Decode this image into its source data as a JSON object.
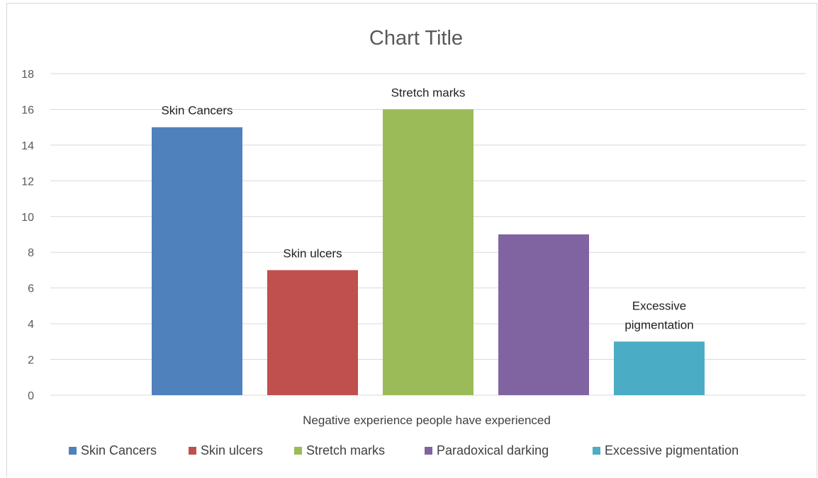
{
  "chart_data": {
    "type": "bar",
    "title": "Chart Title",
    "xlabel": "Negative experience people have experienced",
    "ylabel": "",
    "ylim": [
      0,
      18
    ],
    "yticks": [
      0,
      2,
      4,
      6,
      8,
      10,
      12,
      14,
      16,
      18
    ],
    "grid": true,
    "legend_position": "bottom",
    "series": [
      {
        "name": "Skin Cancers",
        "value": 15,
        "color": "#4f81bd",
        "data_label": [
          "Skin Cancers"
        ]
      },
      {
        "name": "Skin ulcers",
        "value": 7,
        "color": "#c0504d",
        "data_label": [
          "Skin ulcers"
        ]
      },
      {
        "name": "Stretch marks",
        "value": 16,
        "color": "#9bbb59",
        "data_label": [
          "Stretch marks"
        ]
      },
      {
        "name": "Paradoxical darking",
        "value": 9,
        "color": "#8064a2",
        "data_label": []
      },
      {
        "name": "Excessive pigmentation",
        "value": 3,
        "color": "#4bacc6",
        "data_label": [
          "Excessive",
          "pigmentation"
        ]
      }
    ]
  }
}
